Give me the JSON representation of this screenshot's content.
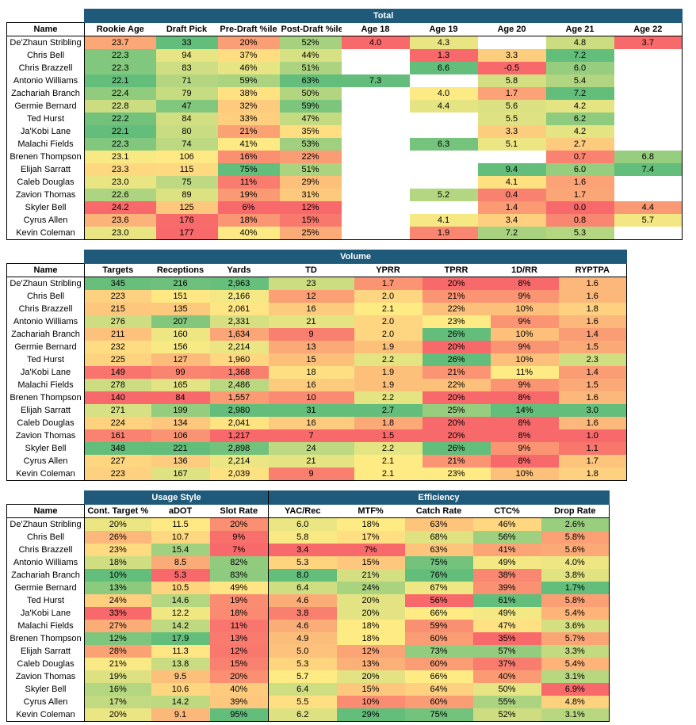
{
  "colors": {
    "header_band": "#1f5a7a",
    "scale": [
      "#f8696b",
      "#fbaa77",
      "#ffeb84",
      "#b1d580",
      "#63be7b"
    ]
  },
  "total": {
    "title": "Total",
    "columns": [
      "Name",
      "Rookie Age",
      "Draft Pick",
      "Pre-Draft %ile",
      "Post-Draft %ile",
      "Age 18",
      "Age 19",
      "Age 20",
      "Age 21",
      "Age 22"
    ],
    "rows": [
      [
        "De'Zhaun Stribling",
        "23.7",
        "33",
        "20%",
        "52%",
        "4.0",
        "4.3",
        "",
        "4.8",
        "3.7"
      ],
      [
        "Chris Bell",
        "22.3",
        "94",
        "37%",
        "44%",
        "",
        "1.3",
        "3.3",
        "7.2",
        ""
      ],
      [
        "Chris Brazzell",
        "22.3",
        "83",
        "46%",
        "51%",
        "",
        "6.6",
        "-0.5",
        "6.0",
        ""
      ],
      [
        "Antonio Williams",
        "22.1",
        "71",
        "59%",
        "63%",
        "7.3",
        "",
        "5.8",
        "5.4",
        ""
      ],
      [
        "Zachariah Branch",
        "22.4",
        "79",
        "38%",
        "50%",
        "",
        "4.0",
        "1.7",
        "7.2",
        ""
      ],
      [
        "Germie Bernard",
        "22.8",
        "47",
        "32%",
        "59%",
        "",
        "4.4",
        "5.6",
        "4.2",
        ""
      ],
      [
        "Ted Hurst",
        "22.2",
        "84",
        "33%",
        "47%",
        "",
        "",
        "5.5",
        "6.2",
        ""
      ],
      [
        "Ja'Kobi Lane",
        "22.1",
        "80",
        "21%",
        "35%",
        "",
        "",
        "3.3",
        "4.2",
        ""
      ],
      [
        "Malachi Fields",
        "22.3",
        "74",
        "41%",
        "53%",
        "",
        "6.3",
        "5.1",
        "2.7",
        ""
      ],
      [
        "Brenen Thompson",
        "23.1",
        "106",
        "16%",
        "22%",
        "",
        "",
        "",
        "0.7",
        "6.8"
      ],
      [
        "Elijah Sarratt",
        "23.3",
        "115",
        "75%",
        "51%",
        "",
        "",
        "9.4",
        "6.0",
        "7.4"
      ],
      [
        "Caleb Douglas",
        "23.0",
        "75",
        "11%",
        "29%",
        "",
        "",
        "4.1",
        "1.6",
        ""
      ],
      [
        "Zavion Thomas",
        "22.6",
        "89",
        "19%",
        "31%",
        "",
        "5.2",
        "0.4",
        "1.7",
        ""
      ],
      [
        "Skyler Bell",
        "24.2",
        "125",
        "6%",
        "12%",
        "",
        "",
        "1.4",
        "0.0",
        "4.4"
      ],
      [
        "Cyrus Allen",
        "23.6",
        "176",
        "18%",
        "15%",
        "",
        "4.1",
        "3.4",
        "0.8",
        "5.7"
      ],
      [
        "Kevin Coleman",
        "23.0",
        "177",
        "40%",
        "25%",
        "",
        "1.9",
        "7.2",
        "5.3",
        ""
      ]
    ]
  },
  "volume": {
    "title": "Volume",
    "columns": [
      "Name",
      "Targets",
      "Receptions",
      "Yards",
      "TD",
      "YPRR",
      "TPRR",
      "1D/RR",
      "RYPTPA"
    ],
    "rows": [
      [
        "De'Zhaun Stribling",
        "345",
        "216",
        "2,963",
        "23",
        "1.7",
        "20%",
        "8%",
        "1.6"
      ],
      [
        "Chris Bell",
        "223",
        "151",
        "2,166",
        "12",
        "2.0",
        "21%",
        "9%",
        "1.6"
      ],
      [
        "Chris Brazzell",
        "215",
        "135",
        "2,061",
        "16",
        "2.1",
        "22%",
        "10%",
        "1.8"
      ],
      [
        "Antonio Williams",
        "276",
        "207",
        "2,331",
        "21",
        "2.0",
        "23%",
        "9%",
        "1.6"
      ],
      [
        "Zachariah Branch",
        "211",
        "160",
        "1,634",
        "9",
        "2.0",
        "26%",
        "10%",
        "1.4"
      ],
      [
        "Germie Bernard",
        "232",
        "156",
        "2,214",
        "13",
        "1.9",
        "20%",
        "9%",
        "1.5"
      ],
      [
        "Ted Hurst",
        "225",
        "127",
        "1,960",
        "15",
        "2.2",
        "26%",
        "10%",
        "2.3"
      ],
      [
        "Ja'Kobi Lane",
        "149",
        "99",
        "1,368",
        "18",
        "1.9",
        "21%",
        "11%",
        "1.4"
      ],
      [
        "Malachi Fields",
        "278",
        "165",
        "2,486",
        "16",
        "1.9",
        "22%",
        "9%",
        "1.5"
      ],
      [
        "Brenen Thompson",
        "140",
        "84",
        "1,557",
        "10",
        "2.2",
        "20%",
        "8%",
        "1.6"
      ],
      [
        "Elijah Sarratt",
        "271",
        "199",
        "2,980",
        "31",
        "2.7",
        "25%",
        "14%",
        "3.0"
      ],
      [
        "Caleb Douglas",
        "224",
        "134",
        "2,041",
        "16",
        "1.8",
        "20%",
        "8%",
        "1.6"
      ],
      [
        "Zavion Thomas",
        "161",
        "106",
        "1,217",
        "7",
        "1.5",
        "20%",
        "8%",
        "1.0"
      ],
      [
        "Skyler Bell",
        "348",
        "221",
        "2,898",
        "24",
        "2.2",
        "26%",
        "9%",
        "1.1"
      ],
      [
        "Cyrus Allen",
        "227",
        "136",
        "2,214",
        "21",
        "2.1",
        "21%",
        "8%",
        "1.7"
      ],
      [
        "Kevin Coleman",
        "223",
        "167",
        "2,039",
        "9",
        "2.1",
        "23%",
        "10%",
        "1.8"
      ]
    ]
  },
  "usage": {
    "group_usage": "Usage Style",
    "group_efficiency": "Efficiency",
    "columns": [
      "Name",
      "Cont. Target %",
      "aDOT",
      "Slot Rate",
      "YAC/Rec",
      "MTF%",
      "Catch Rate",
      "CTC%",
      "Drop Rate"
    ],
    "rows": [
      [
        "De'Zhaun Stribling",
        "20%",
        "11.5",
        "20%",
        "6.0",
        "18%",
        "63%",
        "46%",
        "2.6%"
      ],
      [
        "Chris Bell",
        "26%",
        "10.7",
        "9%",
        "5.8",
        "17%",
        "68%",
        "56%",
        "5.8%"
      ],
      [
        "Chris Brazzell",
        "23%",
        "15.4",
        "7%",
        "3.4",
        "7%",
        "63%",
        "41%",
        "5.6%"
      ],
      [
        "Antonio Williams",
        "18%",
        "8.5",
        "82%",
        "5.3",
        "15%",
        "75%",
        "49%",
        "4.0%"
      ],
      [
        "Zachariah Branch",
        "10%",
        "5.3",
        "83%",
        "8.0",
        "21%",
        "76%",
        "38%",
        "3.8%"
      ],
      [
        "Germie Bernard",
        "13%",
        "10.5",
        "49%",
        "6.4",
        "24%",
        "67%",
        "39%",
        "1.7%"
      ],
      [
        "Ted Hurst",
        "24%",
        "14.6",
        "19%",
        "4.6",
        "20%",
        "56%",
        "61%",
        "5.8%"
      ],
      [
        "Ja'Kobi Lane",
        "33%",
        "12.2",
        "18%",
        "3.8",
        "20%",
        "66%",
        "49%",
        "5.4%"
      ],
      [
        "Malachi Fields",
        "27%",
        "14.2",
        "11%",
        "4.6",
        "18%",
        "59%",
        "47%",
        "3.6%"
      ],
      [
        "Brenen Thompson",
        "12%",
        "17.9",
        "13%",
        "4.9",
        "18%",
        "60%",
        "35%",
        "5.7%"
      ],
      [
        "Elijah Sarratt",
        "28%",
        "11.3",
        "12%",
        "5.0",
        "12%",
        "73%",
        "57%",
        "3.3%"
      ],
      [
        "Caleb Douglas",
        "21%",
        "13.8",
        "15%",
        "5.3",
        "13%",
        "60%",
        "37%",
        "5.4%"
      ],
      [
        "Zavion Thomas",
        "19%",
        "9.5",
        "20%",
        "5.7",
        "20%",
        "66%",
        "40%",
        "3.1%"
      ],
      [
        "Skyler Bell",
        "16%",
        "10.6",
        "40%",
        "6.4",
        "15%",
        "64%",
        "50%",
        "6.9%"
      ],
      [
        "Cyrus Allen",
        "17%",
        "14.2",
        "39%",
        "5.5",
        "10%",
        "60%",
        "55%",
        "4.8%"
      ],
      [
        "Kevin Coleman",
        "20%",
        "9.1",
        "95%",
        "6.2",
        "29%",
        "75%",
        "52%",
        "3.1%"
      ]
    ]
  }
}
